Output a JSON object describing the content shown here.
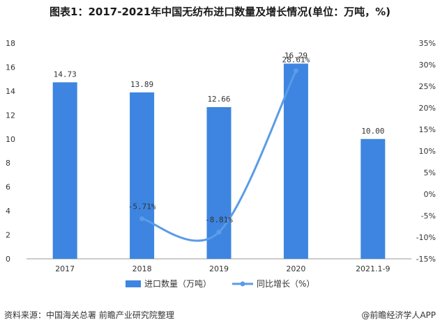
{
  "title": "图表1：2017-2021年中国无纺布进口数量及增长情况(单位：万吨，%)",
  "source": "资料来源：中国海关总署 前瞻产业研究院整理",
  "brand": "@前瞻经济学人APP",
  "chart_data": {
    "type": "bar",
    "categories": [
      "2017",
      "2018",
      "2019",
      "2020",
      "2021.1-9"
    ],
    "series": [
      {
        "name": "进口数量（万吨）",
        "type": "bar",
        "axis": "left",
        "values": [
          14.73,
          13.89,
          12.66,
          16.29,
          10.0
        ],
        "labels": [
          "14.73",
          "13.89",
          "12.66",
          "16.29",
          "10.00"
        ],
        "color": "#3d85e0"
      },
      {
        "name": "同比增长（%）",
        "type": "line",
        "axis": "right",
        "values": [
          null,
          -5.71,
          -8.81,
          28.61,
          null
        ],
        "labels": [
          "",
          "-5.71%",
          "-8.81%",
          "28.61%",
          ""
        ],
        "color": "#5b9be8"
      }
    ],
    "y_left": {
      "ylim": [
        0,
        18
      ],
      "ticks": [
        0,
        2,
        4,
        6,
        8,
        10,
        12,
        14,
        16,
        18
      ]
    },
    "y_right": {
      "ylim": [
        -15,
        35
      ],
      "ticks": [
        -15,
        -10,
        -5,
        0,
        5,
        10,
        15,
        20,
        25,
        30,
        35
      ],
      "tick_labels": [
        "-15%",
        "-10%",
        "-5%",
        "0%",
        "5%",
        "10%",
        "15%",
        "20%",
        "25%",
        "30%",
        "35%"
      ]
    },
    "legend": {
      "placement": "bottom"
    },
    "grid": false
  }
}
